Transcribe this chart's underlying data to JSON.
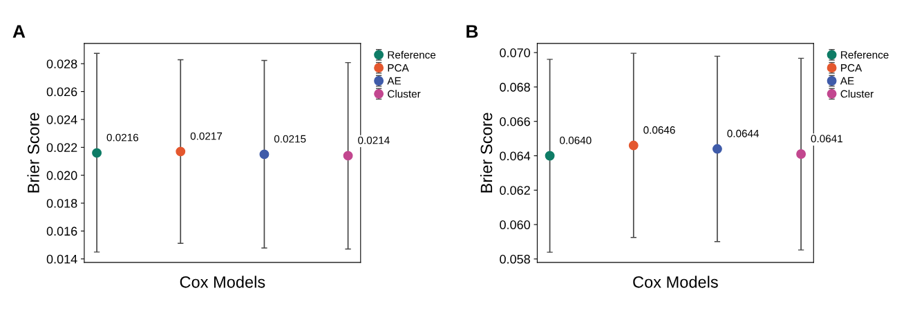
{
  "chart_data": [
    {
      "type": "scatter",
      "title": "A",
      "xlabel": "Cox Models",
      "ylabel": "Brier Score",
      "categories": [
        null,
        null,
        null,
        null
      ],
      "ylim": [
        0.01375,
        0.02945
      ],
      "yticks": [
        0.014,
        0.016,
        0.018,
        {
          "value": 0.02,
          "label": "0.020"
        },
        0.022,
        0.024,
        0.026,
        0.028
      ],
      "tick_labels": "y",
      "legend": "top right",
      "marker": "circle",
      "series": [
        {
          "name": "Reference",
          "color": "#0e7c66",
          "values": [
            0.0216,
            null,
            null,
            null
          ],
          "value_labels": [
            "0.0216",
            null,
            null,
            null
          ],
          "errors": [
            [
              0.01449,
              0.02874
            ],
            null,
            null,
            null
          ]
        },
        {
          "name": "PCA",
          "color": "#e4572e",
          "values": [
            null,
            0.0217,
            null,
            null
          ],
          "value_labels": [
            null,
            "0.0217",
            null,
            null
          ],
          "errors": [
            null,
            [
              0.01512,
              0.02828
            ],
            null,
            null
          ]
        },
        {
          "name": "AE",
          "color": "#3f5ba9",
          "values": [
            null,
            null,
            0.0215,
            null
          ],
          "value_labels": [
            null,
            null,
            "0.0215",
            null
          ],
          "errors": [
            null,
            null,
            [
              0.01478,
              0.02823
            ],
            null
          ]
        },
        {
          "name": "Cluster",
          "color": "#c2478f",
          "values": [
            null,
            null,
            null,
            0.0214
          ],
          "value_labels": [
            null,
            null,
            null,
            "0.0214"
          ],
          "errors": [
            null,
            null,
            null,
            [
              0.01471,
              0.02808
            ]
          ]
        }
      ]
    },
    {
      "type": "scatter",
      "title": "B",
      "xlabel": "Cox Models",
      "ylabel": "Brier Score",
      "categories": [
        null,
        null,
        null,
        null
      ],
      "ylim": [
        0.0578,
        0.07053
      ],
      "yticks": [
        0.058,
        {
          "value": 0.06,
          "label": "0.060"
        },
        0.062,
        0.064,
        0.066,
        0.068,
        {
          "value": 0.07,
          "label": "0.070"
        }
      ],
      "tick_labels": "y",
      "legend": "top right",
      "marker": "circle",
      "series": [
        {
          "name": "Reference",
          "color": "#0e7c66",
          "values": [
            0.064,
            null,
            null,
            null
          ],
          "value_labels": [
            "0.0640",
            null,
            null,
            null
          ],
          "errors": [
            [
              0.05839,
              0.06961
            ],
            null,
            null,
            null
          ]
        },
        {
          "name": "PCA",
          "color": "#e4572e",
          "values": [
            null,
            0.0646,
            null,
            null
          ],
          "value_labels": [
            null,
            "0.0646",
            null,
            null
          ],
          "errors": [
            null,
            [
              0.05925,
              0.06996
            ],
            null,
            null
          ]
        },
        {
          "name": "AE",
          "color": "#3f5ba9",
          "values": [
            null,
            null,
            0.0644,
            null
          ],
          "value_labels": [
            null,
            null,
            "0.0644",
            null
          ],
          "errors": [
            null,
            null,
            [
              0.05901,
              0.06979
            ],
            null
          ]
        },
        {
          "name": "Cluster",
          "color": "#c2478f",
          "values": [
            null,
            null,
            null,
            0.0641
          ],
          "value_labels": [
            null,
            null,
            null,
            "0.0641"
          ],
          "errors": [
            null,
            null,
            null,
            [
              0.05852,
              0.06967
            ]
          ]
        }
      ]
    }
  ]
}
